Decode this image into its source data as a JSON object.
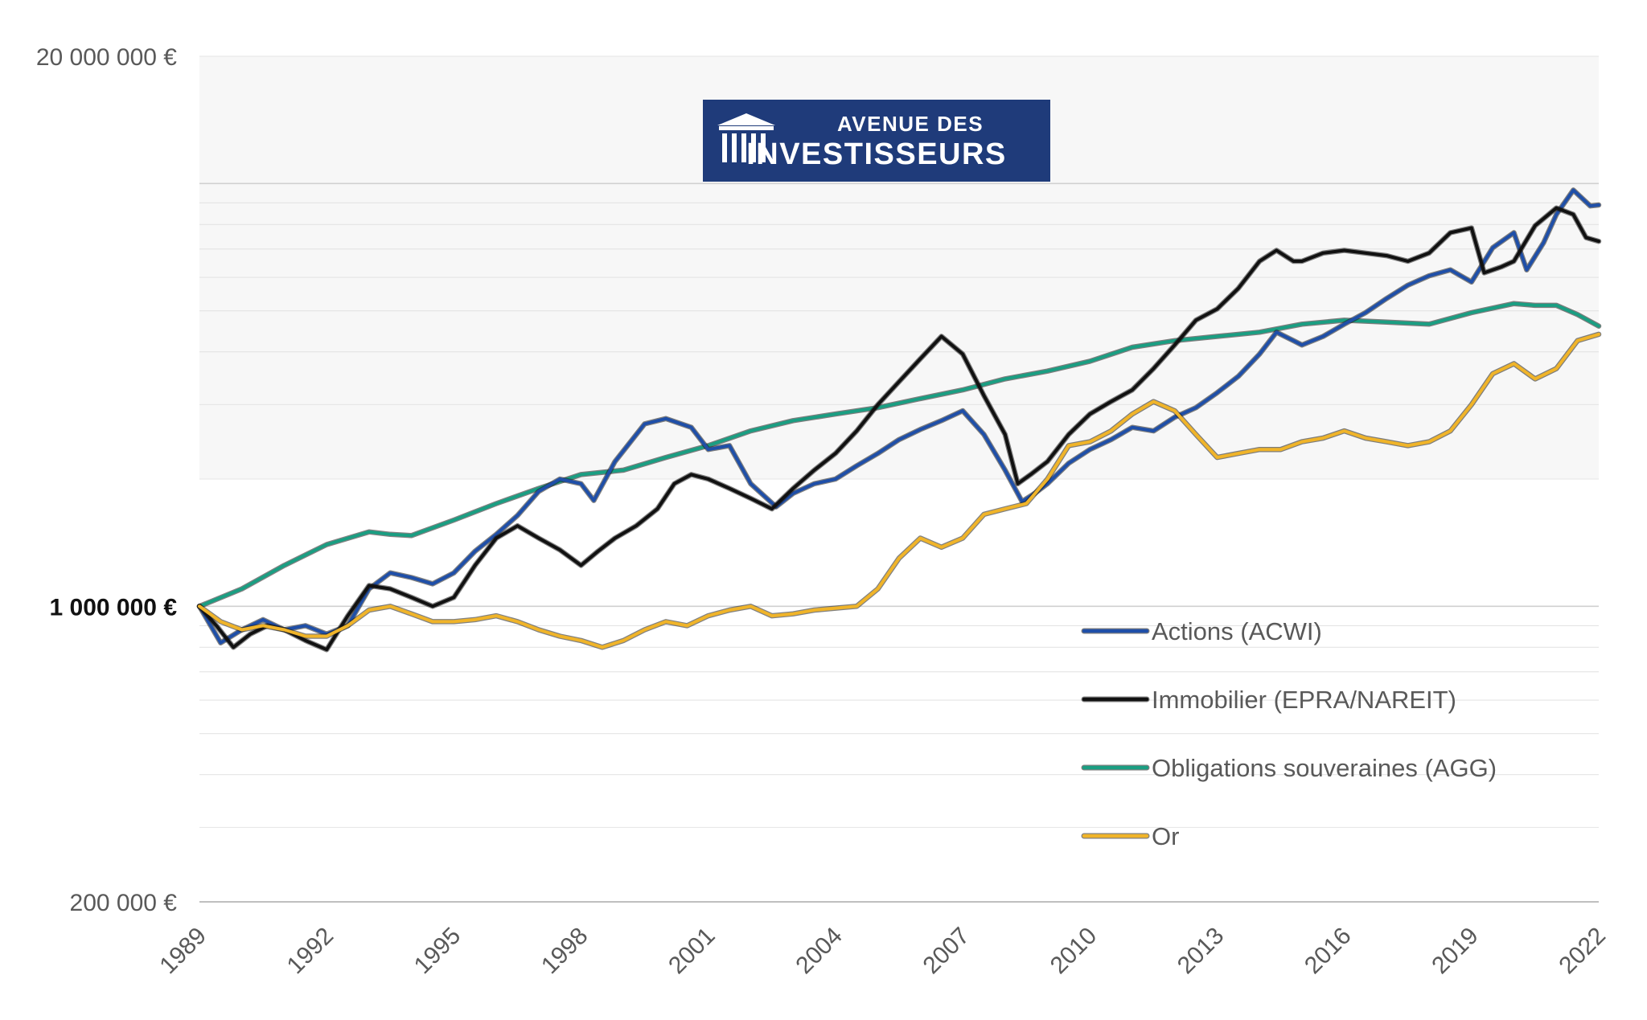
{
  "logo": {
    "line1": "AVENUE DES",
    "line2": "INVESTISSEURS",
    "background": "#1f3b7a",
    "text_color": "#ffffff"
  },
  "chart_data": {
    "type": "line",
    "title": "",
    "xlabel": "",
    "ylabel": "",
    "y_scale": "log",
    "ylim": [
      200000,
      20000000
    ],
    "xlim": [
      1989,
      2022
    ],
    "x_ticks": [
      1989,
      1992,
      1995,
      1998,
      2001,
      2004,
      2007,
      2010,
      2013,
      2016,
      2019,
      2022
    ],
    "x_tick_labels": [
      "1989",
      "1992",
      "1995",
      "1998",
      "2001",
      "2004",
      "2007",
      "2010",
      "2013",
      "2016",
      "2019",
      "2022"
    ],
    "y_ticks": [
      200000,
      1000000,
      20000000
    ],
    "y_tick_labels": [
      "200 000 €",
      "1 000 000 €",
      "20 000 000 €"
    ],
    "y_tick_bold": [
      false,
      true,
      false
    ],
    "grid": true,
    "legend_position": "bottom-right",
    "series": [
      {
        "name": "Actions (ACWI)",
        "color": "#1f4fa8",
        "points": [
          [
            1989,
            1000000
          ],
          [
            1989.5,
            820000
          ],
          [
            1990,
            880000
          ],
          [
            1990.5,
            930000
          ],
          [
            1991,
            880000
          ],
          [
            1991.5,
            900000
          ],
          [
            1992,
            860000
          ],
          [
            1992.5,
            900000
          ],
          [
            1993,
            1100000
          ],
          [
            1993.5,
            1200000
          ],
          [
            1994,
            1170000
          ],
          [
            1994.5,
            1130000
          ],
          [
            1995,
            1200000
          ],
          [
            1995.5,
            1350000
          ],
          [
            1996,
            1480000
          ],
          [
            1996.5,
            1640000
          ],
          [
            1997,
            1870000
          ],
          [
            1997.5,
            2000000
          ],
          [
            1998,
            1950000
          ],
          [
            1998.3,
            1780000
          ],
          [
            1998.8,
            2200000
          ],
          [
            1999.5,
            2700000
          ],
          [
            2000,
            2780000
          ],
          [
            2000.6,
            2650000
          ],
          [
            2001,
            2350000
          ],
          [
            2001.5,
            2400000
          ],
          [
            2002,
            1950000
          ],
          [
            2002.6,
            1720000
          ],
          [
            2003,
            1850000
          ],
          [
            2003.5,
            1950000
          ],
          [
            2004,
            2000000
          ],
          [
            2004.5,
            2150000
          ],
          [
            2005,
            2300000
          ],
          [
            2005.5,
            2480000
          ],
          [
            2006,
            2620000
          ],
          [
            2006.5,
            2750000
          ],
          [
            2007,
            2900000
          ],
          [
            2007.5,
            2550000
          ],
          [
            2008,
            2100000
          ],
          [
            2008.4,
            1770000
          ],
          [
            2008.7,
            1850000
          ],
          [
            2009,
            1950000
          ],
          [
            2009.5,
            2180000
          ],
          [
            2010,
            2350000
          ],
          [
            2010.5,
            2480000
          ],
          [
            2011,
            2650000
          ],
          [
            2011.5,
            2600000
          ],
          [
            2012,
            2800000
          ],
          [
            2012.5,
            2950000
          ],
          [
            2013,
            3200000
          ],
          [
            2013.5,
            3500000
          ],
          [
            2014,
            3950000
          ],
          [
            2014.4,
            4450000
          ],
          [
            2014.8,
            4250000
          ],
          [
            2015,
            4150000
          ],
          [
            2015.5,
            4350000
          ],
          [
            2016,
            4650000
          ],
          [
            2016.5,
            4950000
          ],
          [
            2017,
            5350000
          ],
          [
            2017.5,
            5750000
          ],
          [
            2018,
            6050000
          ],
          [
            2018.5,
            6250000
          ],
          [
            2019,
            5850000
          ],
          [
            2019.5,
            7050000
          ],
          [
            2020,
            7650000
          ],
          [
            2020.3,
            6250000
          ],
          [
            2020.7,
            7250000
          ],
          [
            2021,
            8450000
          ],
          [
            2021.4,
            9650000
          ],
          [
            2021.8,
            8850000
          ],
          [
            2022,
            8900000
          ]
        ]
      },
      {
        "name": "Immobilier (EPRA/NAREIT)",
        "color": "#111111",
        "points": [
          [
            1989,
            1000000
          ],
          [
            1989.4,
            900000
          ],
          [
            1989.8,
            800000
          ],
          [
            1990.2,
            860000
          ],
          [
            1990.6,
            900000
          ],
          [
            1991,
            880000
          ],
          [
            1991.5,
            830000
          ],
          [
            1992,
            790000
          ],
          [
            1992.5,
            950000
          ],
          [
            1993,
            1120000
          ],
          [
            1993.5,
            1100000
          ],
          [
            1994,
            1050000
          ],
          [
            1994.5,
            1000000
          ],
          [
            1995,
            1050000
          ],
          [
            1995.5,
            1250000
          ],
          [
            1996,
            1450000
          ],
          [
            1996.5,
            1550000
          ],
          [
            1997,
            1450000
          ],
          [
            1997.5,
            1360000
          ],
          [
            1998,
            1250000
          ],
          [
            1998.4,
            1350000
          ],
          [
            1998.8,
            1450000
          ],
          [
            1999.3,
            1550000
          ],
          [
            1999.8,
            1700000
          ],
          [
            2000.2,
            1950000
          ],
          [
            2000.6,
            2050000
          ],
          [
            2001,
            2000000
          ],
          [
            2001.5,
            1900000
          ],
          [
            2002,
            1800000
          ],
          [
            2002.5,
            1700000
          ],
          [
            2003,
            1900000
          ],
          [
            2003.5,
            2100000
          ],
          [
            2004,
            2300000
          ],
          [
            2004.5,
            2600000
          ],
          [
            2005,
            3000000
          ],
          [
            2005.5,
            3400000
          ],
          [
            2006,
            3850000
          ],
          [
            2006.5,
            4350000
          ],
          [
            2007,
            3950000
          ],
          [
            2007.5,
            3150000
          ],
          [
            2008,
            2550000
          ],
          [
            2008.3,
            1950000
          ],
          [
            2008.6,
            2050000
          ],
          [
            2009,
            2200000
          ],
          [
            2009.5,
            2550000
          ],
          [
            2010,
            2850000
          ],
          [
            2010.5,
            3050000
          ],
          [
            2011,
            3250000
          ],
          [
            2011.5,
            3650000
          ],
          [
            2012,
            4150000
          ],
          [
            2012.5,
            4750000
          ],
          [
            2013,
            5050000
          ],
          [
            2013.5,
            5650000
          ],
          [
            2014,
            6550000
          ],
          [
            2014.4,
            6950000
          ],
          [
            2014.8,
            6550000
          ],
          [
            2015,
            6550000
          ],
          [
            2015.5,
            6850000
          ],
          [
            2016,
            6950000
          ],
          [
            2016.5,
            6850000
          ],
          [
            2017,
            6750000
          ],
          [
            2017.5,
            6550000
          ],
          [
            2018,
            6850000
          ],
          [
            2018.5,
            7650000
          ],
          [
            2019,
            7850000
          ],
          [
            2019.3,
            6150000
          ],
          [
            2019.7,
            6350000
          ],
          [
            2020,
            6550000
          ],
          [
            2020.5,
            7950000
          ],
          [
            2021,
            8750000
          ],
          [
            2021.4,
            8450000
          ],
          [
            2021.7,
            7450000
          ],
          [
            2022,
            7300000
          ]
        ]
      },
      {
        "name": "Obligations souveraines (AGG)",
        "color": "#1a9e82",
        "points": [
          [
            1989,
            1000000
          ],
          [
            1990,
            1100000
          ],
          [
            1991,
            1250000
          ],
          [
            1992,
            1400000
          ],
          [
            1993,
            1500000
          ],
          [
            1993.5,
            1480000
          ],
          [
            1994,
            1470000
          ],
          [
            1995,
            1600000
          ],
          [
            1996,
            1750000
          ],
          [
            1997,
            1900000
          ],
          [
            1998,
            2050000
          ],
          [
            1999,
            2100000
          ],
          [
            2000,
            2250000
          ],
          [
            2001,
            2400000
          ],
          [
            2002,
            2600000
          ],
          [
            2003,
            2750000
          ],
          [
            2004,
            2850000
          ],
          [
            2005,
            2950000
          ],
          [
            2006,
            3100000
          ],
          [
            2007,
            3250000
          ],
          [
            2008,
            3450000
          ],
          [
            2009,
            3600000
          ],
          [
            2010,
            3800000
          ],
          [
            2011,
            4100000
          ],
          [
            2012,
            4250000
          ],
          [
            2013,
            4350000
          ],
          [
            2014,
            4450000
          ],
          [
            2015,
            4650000
          ],
          [
            2016,
            4750000
          ],
          [
            2017,
            4700000
          ],
          [
            2018,
            4650000
          ],
          [
            2019,
            4950000
          ],
          [
            2020,
            5200000
          ],
          [
            2020.5,
            5150000
          ],
          [
            2021,
            5150000
          ],
          [
            2021.5,
            4900000
          ],
          [
            2022,
            4600000
          ]
        ]
      },
      {
        "name": "Or",
        "color": "#f0b429",
        "points": [
          [
            1989,
            1000000
          ],
          [
            1989.5,
            920000
          ],
          [
            1990,
            880000
          ],
          [
            1990.5,
            900000
          ],
          [
            1991,
            880000
          ],
          [
            1991.5,
            850000
          ],
          [
            1992,
            850000
          ],
          [
            1992.5,
            900000
          ],
          [
            1993,
            980000
          ],
          [
            1993.5,
            1000000
          ],
          [
            1994,
            960000
          ],
          [
            1994.5,
            920000
          ],
          [
            1995,
            920000
          ],
          [
            1995.5,
            930000
          ],
          [
            1996,
            950000
          ],
          [
            1996.5,
            920000
          ],
          [
            1997,
            880000
          ],
          [
            1997.5,
            850000
          ],
          [
            1998,
            830000
          ],
          [
            1998.5,
            800000
          ],
          [
            1999,
            830000
          ],
          [
            1999.5,
            880000
          ],
          [
            2000,
            920000
          ],
          [
            2000.5,
            900000
          ],
          [
            2001,
            950000
          ],
          [
            2001.5,
            980000
          ],
          [
            2002,
            1000000
          ],
          [
            2002.5,
            950000
          ],
          [
            2003,
            960000
          ],
          [
            2003.5,
            980000
          ],
          [
            2004,
            990000
          ],
          [
            2004.5,
            1000000
          ],
          [
            2005,
            1100000
          ],
          [
            2005.5,
            1300000
          ],
          [
            2006,
            1450000
          ],
          [
            2006.5,
            1380000
          ],
          [
            2007,
            1450000
          ],
          [
            2007.5,
            1650000
          ],
          [
            2008,
            1700000
          ],
          [
            2008.5,
            1750000
          ],
          [
            2009,
            2000000
          ],
          [
            2009.5,
            2400000
          ],
          [
            2010,
            2450000
          ],
          [
            2010.5,
            2600000
          ],
          [
            2011,
            2850000
          ],
          [
            2011.5,
            3050000
          ],
          [
            2012,
            2900000
          ],
          [
            2012.5,
            2550000
          ],
          [
            2013,
            2250000
          ],
          [
            2013.5,
            2300000
          ],
          [
            2014,
            2350000
          ],
          [
            2014.5,
            2350000
          ],
          [
            2015,
            2450000
          ],
          [
            2015.5,
            2500000
          ],
          [
            2016,
            2600000
          ],
          [
            2016.5,
            2500000
          ],
          [
            2017,
            2450000
          ],
          [
            2017.5,
            2400000
          ],
          [
            2018,
            2450000
          ],
          [
            2018.5,
            2600000
          ],
          [
            2019,
            3000000
          ],
          [
            2019.5,
            3550000
          ],
          [
            2020,
            3750000
          ],
          [
            2020.5,
            3450000
          ],
          [
            2021,
            3650000
          ],
          [
            2021.5,
            4250000
          ],
          [
            2022,
            4400000
          ]
        ]
      }
    ]
  }
}
